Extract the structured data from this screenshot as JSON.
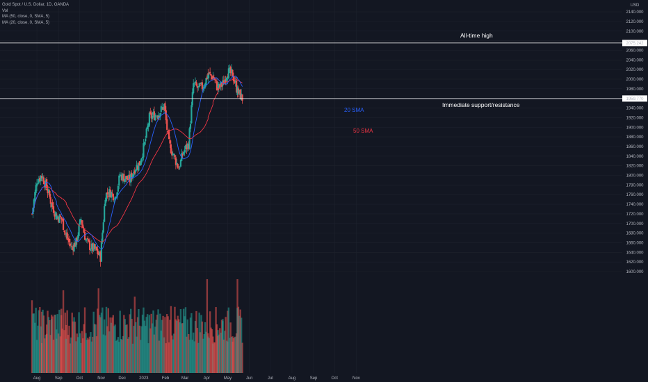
{
  "legend": {
    "symbol": "Gold Spot / U.S. Dollar, 1D, OANDA",
    "vol": "Vol",
    "ma50": "MA (50, close, 0, SMA, 5)",
    "ma20": "MA (20, close, 0, SMA, 5)"
  },
  "colors": {
    "background": "#131722",
    "up": "#26a69a",
    "down": "#ef5350",
    "ma20": "#2962ff",
    "ma50": "#f23645",
    "level_line": "#ffffff"
  },
  "chart_data": {
    "type": "candlestick",
    "currency_label": "USD",
    "y_ticks": [
      1600,
      1620,
      1640,
      1660,
      1680,
      1700,
      1720,
      1740,
      1760,
      1780,
      1800,
      1820,
      1840,
      1860,
      1880,
      1900,
      1920,
      1940,
      1960,
      1980,
      2000,
      2020,
      2040,
      2060,
      2080,
      2100,
      2120,
      2140
    ],
    "x_labels": [
      "Aug",
      "Sep",
      "Oct",
      "Nov",
      "Dec",
      "2023",
      "Feb",
      "Mar",
      "Apr",
      "May",
      "Jun",
      "Jul",
      "Aug",
      "Sep",
      "Oct",
      "Nov"
    ],
    "levels": [
      {
        "value": 2075.242,
        "label": "2075.242",
        "annotation": "All-time high"
      },
      {
        "value": 1959.77,
        "label": "1959.770",
        "annotation": "Immediate support/resistance"
      }
    ],
    "ma_labels": [
      {
        "text": "20 SMA",
        "series": "ma20"
      },
      {
        "text": "50 SMA",
        "series": "ma50"
      }
    ],
    "close_path": [
      [
        "2022-07-25",
        1720
      ],
      [
        "2022-08-01",
        1790
      ],
      [
        "2022-08-08",
        1800
      ],
      [
        "2022-08-15",
        1775
      ],
      [
        "2022-08-22",
        1740
      ],
      [
        "2022-08-29",
        1715
      ],
      [
        "2022-09-05",
        1710
      ],
      [
        "2022-09-12",
        1675
      ],
      [
        "2022-09-19",
        1650
      ],
      [
        "2022-09-26",
        1660
      ],
      [
        "2022-10-03",
        1710
      ],
      [
        "2022-10-10",
        1665
      ],
      [
        "2022-10-17",
        1650
      ],
      [
        "2022-10-24",
        1645
      ],
      [
        "2022-10-31",
        1630
      ],
      [
        "2022-11-07",
        1760
      ],
      [
        "2022-11-14",
        1765
      ],
      [
        "2022-11-21",
        1755
      ],
      [
        "2022-11-28",
        1800
      ],
      [
        "2022-12-05",
        1795
      ],
      [
        "2022-12-12",
        1790
      ],
      [
        "2022-12-19",
        1815
      ],
      [
        "2022-12-26",
        1825
      ],
      [
        "2023-01-02",
        1865
      ],
      [
        "2023-01-09",
        1920
      ],
      [
        "2023-01-16",
        1925
      ],
      [
        "2023-01-23",
        1930
      ],
      [
        "2023-01-30",
        1945
      ],
      [
        "2023-02-06",
        1865
      ],
      [
        "2023-02-13",
        1840
      ],
      [
        "2023-02-20",
        1815
      ],
      [
        "2023-02-27",
        1850
      ],
      [
        "2023-03-06",
        1865
      ],
      [
        "2023-03-13",
        1990
      ],
      [
        "2023-03-20",
        1980
      ],
      [
        "2023-03-27",
        1985
      ],
      [
        "2023-04-03",
        2010
      ],
      [
        "2023-04-10",
        2005
      ],
      [
        "2023-04-17",
        1980
      ],
      [
        "2023-04-24",
        1990
      ],
      [
        "2023-05-01",
        2015
      ],
      [
        "2023-05-08",
        2010
      ],
      [
        "2023-05-15",
        1975
      ],
      [
        "2023-05-22",
        1960
      ]
    ]
  }
}
